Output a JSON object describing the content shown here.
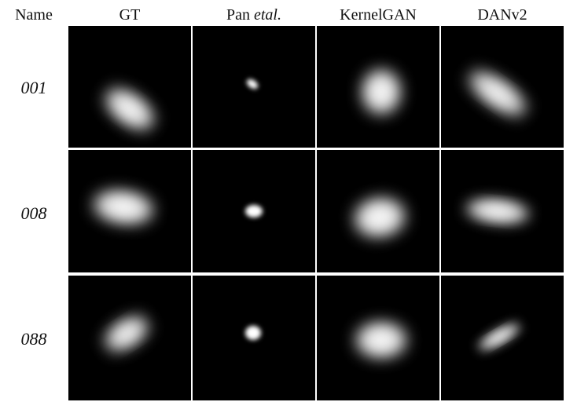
{
  "columns": [
    {
      "key": "name",
      "label": "Name"
    },
    {
      "key": "gt",
      "label": "GT"
    },
    {
      "key": "pan",
      "label_main": "Pan ",
      "label_italic": "etal."
    },
    {
      "key": "kernelgan",
      "label": "KernelGAN"
    },
    {
      "key": "danv2",
      "label": "DANv2"
    }
  ],
  "rows": [
    {
      "name": "001"
    },
    {
      "name": "008"
    },
    {
      "name": "088"
    }
  ],
  "kernel_colors": {
    "background": "#000000",
    "core": "#ffffff"
  }
}
